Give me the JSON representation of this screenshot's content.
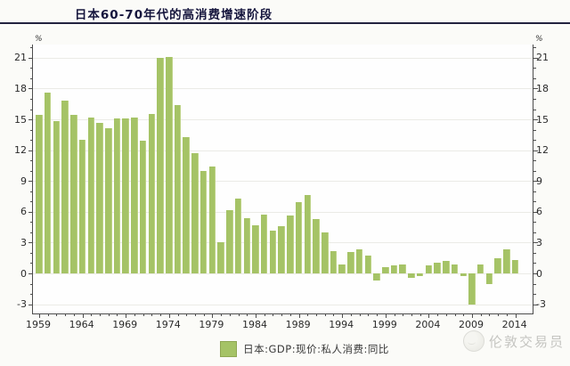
{
  "title": "日本60-70年代的高消费增速阶段",
  "watermark": "伦敦交易员",
  "chart_data": {
    "type": "bar",
    "title": "日本60-70年代的高消费增速阶段",
    "legend": [
      "日本:GDP:现价:私人消费:同比"
    ],
    "legend_position": "bottom",
    "unit_label": "%",
    "grid": true,
    "ylim": [
      -3.9,
      22.2
    ],
    "y_major_ticks": [
      -3,
      0,
      3,
      6,
      9,
      12,
      15,
      18,
      21
    ],
    "x_major_ticks": [
      1959,
      1964,
      1969,
      1974,
      1979,
      1984,
      1989,
      1994,
      1999,
      2004,
      2009,
      2014
    ],
    "x": [
      1959,
      1960,
      1961,
      1962,
      1963,
      1964,
      1965,
      1966,
      1967,
      1968,
      1969,
      1970,
      1971,
      1972,
      1973,
      1974,
      1975,
      1976,
      1977,
      1978,
      1979,
      1980,
      1981,
      1982,
      1983,
      1984,
      1985,
      1986,
      1987,
      1988,
      1989,
      1990,
      1991,
      1992,
      1993,
      1994,
      1995,
      1996,
      1997,
      1998,
      1999,
      2000,
      2001,
      2002,
      2003,
      2004,
      2005,
      2006,
      2007,
      2008,
      2009,
      2010,
      2011,
      2012,
      2013,
      2014
    ],
    "values": [
      15.4,
      17.6,
      14.8,
      16.8,
      15.4,
      13.0,
      15.2,
      14.7,
      14.1,
      15.1,
      15.1,
      15.2,
      12.9,
      15.5,
      21.0,
      21.1,
      16.4,
      13.3,
      11.7,
      10.0,
      10.4,
      3.0,
      6.2,
      7.3,
      5.4,
      4.7,
      5.7,
      4.2,
      4.6,
      5.6,
      6.9,
      7.6,
      5.3,
      4.0,
      2.2,
      0.9,
      2.1,
      2.3,
      1.7,
      -0.7,
      0.6,
      0.8,
      0.9,
      -0.4,
      -0.3,
      0.8,
      1.0,
      1.2,
      0.9,
      -0.3,
      -3.0,
      0.9,
      -1.0,
      1.5,
      2.3,
      1.3
    ],
    "bar_color": "#a5c366",
    "grid_color": "#ebebe6",
    "axis_color": "#4d4d4d",
    "title_color": "#15153d"
  }
}
